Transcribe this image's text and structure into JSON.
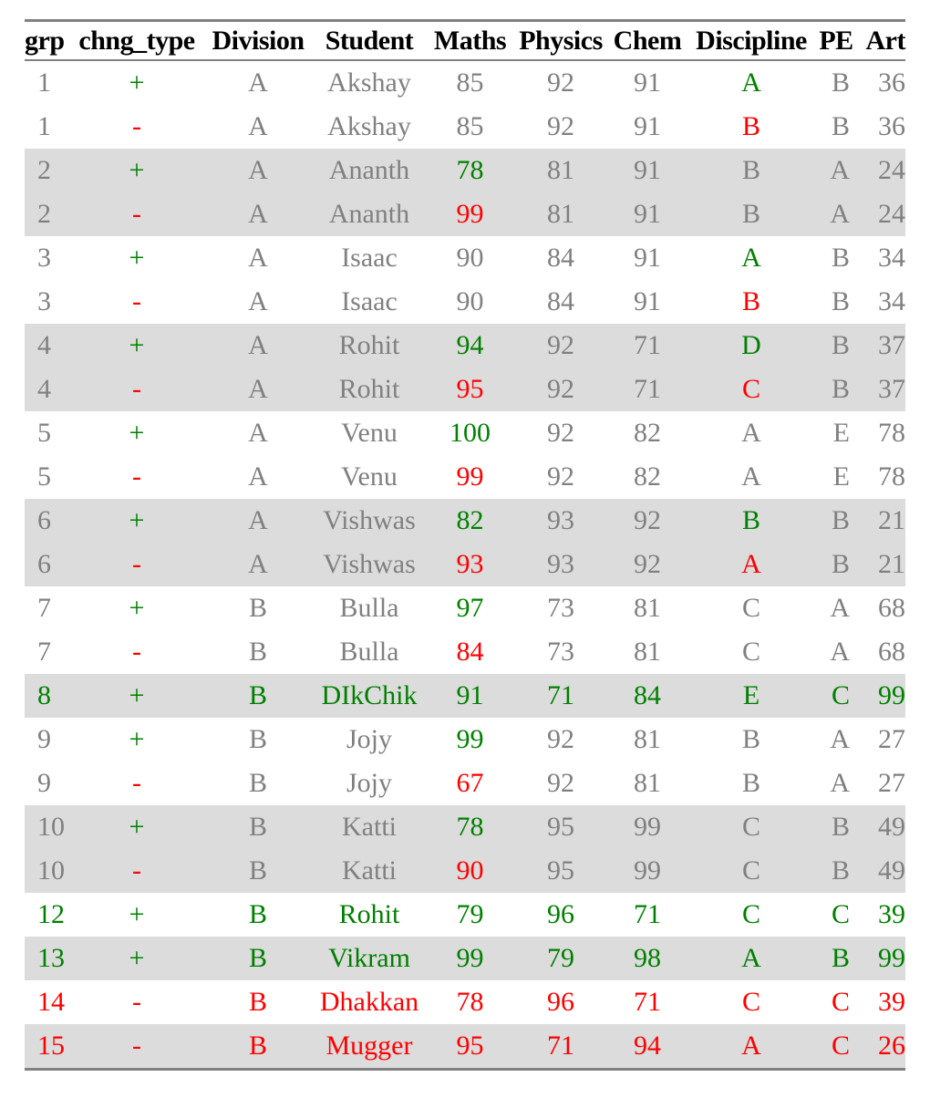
{
  "columns": [
    "grp",
    "chng_type",
    "Division",
    "Student",
    "Maths",
    "Physics",
    "Chem",
    "Discipline",
    "PE",
    "Art"
  ],
  "colors": {
    "added": "#008000",
    "removed": "#ff0000",
    "unchanged": "#808080",
    "band": "#dcdcdc"
  },
  "rows": [
    {
      "shaded": false,
      "whole": "",
      "cells": [
        "1",
        "+",
        "A",
        "Akshay",
        "85",
        "92",
        "91",
        "A",
        "B",
        "36"
      ],
      "hl": [
        0,
        0,
        0,
        0,
        0,
        0,
        0,
        1,
        0,
        0
      ]
    },
    {
      "shaded": false,
      "whole": "",
      "cells": [
        "1",
        "-",
        "A",
        "Akshay",
        "85",
        "92",
        "91",
        "B",
        "B",
        "36"
      ],
      "hl": [
        0,
        0,
        0,
        0,
        0,
        0,
        0,
        1,
        0,
        0
      ]
    },
    {
      "shaded": true,
      "whole": "",
      "cells": [
        "2",
        "+",
        "A",
        "Ananth",
        "78",
        "81",
        "91",
        "B",
        "A",
        "24"
      ],
      "hl": [
        0,
        0,
        0,
        0,
        1,
        0,
        0,
        0,
        0,
        0
      ]
    },
    {
      "shaded": true,
      "whole": "",
      "cells": [
        "2",
        "-",
        "A",
        "Ananth",
        "99",
        "81",
        "91",
        "B",
        "A",
        "24"
      ],
      "hl": [
        0,
        0,
        0,
        0,
        1,
        0,
        0,
        0,
        0,
        0
      ]
    },
    {
      "shaded": false,
      "whole": "",
      "cells": [
        "3",
        "+",
        "A",
        "Isaac",
        "90",
        "84",
        "91",
        "A",
        "B",
        "34"
      ],
      "hl": [
        0,
        0,
        0,
        0,
        0,
        0,
        0,
        1,
        0,
        0
      ]
    },
    {
      "shaded": false,
      "whole": "",
      "cells": [
        "3",
        "-",
        "A",
        "Isaac",
        "90",
        "84",
        "91",
        "B",
        "B",
        "34"
      ],
      "hl": [
        0,
        0,
        0,
        0,
        0,
        0,
        0,
        1,
        0,
        0
      ]
    },
    {
      "shaded": true,
      "whole": "",
      "cells": [
        "4",
        "+",
        "A",
        "Rohit",
        "94",
        "92",
        "71",
        "D",
        "B",
        "37"
      ],
      "hl": [
        0,
        0,
        0,
        0,
        1,
        0,
        0,
        1,
        0,
        0
      ]
    },
    {
      "shaded": true,
      "whole": "",
      "cells": [
        "4",
        "-",
        "A",
        "Rohit",
        "95",
        "92",
        "71",
        "C",
        "B",
        "37"
      ],
      "hl": [
        0,
        0,
        0,
        0,
        1,
        0,
        0,
        1,
        0,
        0
      ]
    },
    {
      "shaded": false,
      "whole": "",
      "cells": [
        "5",
        "+",
        "A",
        "Venu",
        "100",
        "92",
        "82",
        "A",
        "E",
        "78"
      ],
      "hl": [
        0,
        0,
        0,
        0,
        1,
        0,
        0,
        0,
        0,
        0
      ]
    },
    {
      "shaded": false,
      "whole": "",
      "cells": [
        "5",
        "-",
        "A",
        "Venu",
        "99",
        "92",
        "82",
        "A",
        "E",
        "78"
      ],
      "hl": [
        0,
        0,
        0,
        0,
        1,
        0,
        0,
        0,
        0,
        0
      ]
    },
    {
      "shaded": true,
      "whole": "",
      "cells": [
        "6",
        "+",
        "A",
        "Vishwas",
        "82",
        "93",
        "92",
        "B",
        "B",
        "21"
      ],
      "hl": [
        0,
        0,
        0,
        0,
        1,
        0,
        0,
        1,
        0,
        0
      ]
    },
    {
      "shaded": true,
      "whole": "",
      "cells": [
        "6",
        "-",
        "A",
        "Vishwas",
        "93",
        "93",
        "92",
        "A",
        "B",
        "21"
      ],
      "hl": [
        0,
        0,
        0,
        0,
        1,
        0,
        0,
        1,
        0,
        0
      ]
    },
    {
      "shaded": false,
      "whole": "",
      "cells": [
        "7",
        "+",
        "B",
        "Bulla",
        "97",
        "73",
        "81",
        "C",
        "A",
        "68"
      ],
      "hl": [
        0,
        0,
        0,
        0,
        1,
        0,
        0,
        0,
        0,
        0
      ]
    },
    {
      "shaded": false,
      "whole": "",
      "cells": [
        "7",
        "-",
        "B",
        "Bulla",
        "84",
        "73",
        "81",
        "C",
        "A",
        "68"
      ],
      "hl": [
        0,
        0,
        0,
        0,
        1,
        0,
        0,
        0,
        0,
        0
      ]
    },
    {
      "shaded": true,
      "whole": "g",
      "cells": [
        "8",
        "+",
        "B",
        "DIkChik",
        "91",
        "71",
        "84",
        "E",
        "C",
        "99"
      ],
      "hl": [
        0,
        0,
        0,
        0,
        0,
        0,
        0,
        0,
        0,
        0
      ]
    },
    {
      "shaded": false,
      "whole": "",
      "cells": [
        "9",
        "+",
        "B",
        "Jojy",
        "99",
        "92",
        "81",
        "B",
        "A",
        "27"
      ],
      "hl": [
        0,
        0,
        0,
        0,
        1,
        0,
        0,
        0,
        0,
        0
      ]
    },
    {
      "shaded": false,
      "whole": "",
      "cells": [
        "9",
        "-",
        "B",
        "Jojy",
        "67",
        "92",
        "81",
        "B",
        "A",
        "27"
      ],
      "hl": [
        0,
        0,
        0,
        0,
        1,
        0,
        0,
        0,
        0,
        0
      ]
    },
    {
      "shaded": true,
      "whole": "",
      "cells": [
        "10",
        "+",
        "B",
        "Katti",
        "78",
        "95",
        "99",
        "C",
        "B",
        "49"
      ],
      "hl": [
        0,
        0,
        0,
        0,
        1,
        0,
        0,
        0,
        0,
        0
      ]
    },
    {
      "shaded": true,
      "whole": "",
      "cells": [
        "10",
        "-",
        "B",
        "Katti",
        "90",
        "95",
        "99",
        "C",
        "B",
        "49"
      ],
      "hl": [
        0,
        0,
        0,
        0,
        1,
        0,
        0,
        0,
        0,
        0
      ]
    },
    {
      "shaded": false,
      "whole": "g",
      "cells": [
        "12",
        "+",
        "B",
        "Rohit",
        "79",
        "96",
        "71",
        "C",
        "C",
        "39"
      ],
      "hl": [
        0,
        0,
        0,
        0,
        0,
        0,
        0,
        0,
        0,
        0
      ]
    },
    {
      "shaded": true,
      "whole": "g",
      "cells": [
        "13",
        "+",
        "B",
        "Vikram",
        "99",
        "79",
        "98",
        "A",
        "B",
        "99"
      ],
      "hl": [
        0,
        0,
        0,
        0,
        0,
        0,
        0,
        0,
        0,
        0
      ]
    },
    {
      "shaded": false,
      "whole": "r",
      "cells": [
        "14",
        "-",
        "B",
        "Dhakkan",
        "78",
        "96",
        "71",
        "C",
        "C",
        "39"
      ],
      "hl": [
        0,
        0,
        0,
        0,
        0,
        0,
        0,
        0,
        0,
        0
      ]
    },
    {
      "shaded": true,
      "whole": "r",
      "cells": [
        "15",
        "-",
        "B",
        "Mugger",
        "95",
        "71",
        "94",
        "A",
        "C",
        "26"
      ],
      "hl": [
        0,
        0,
        0,
        0,
        0,
        0,
        0,
        0,
        0,
        0
      ]
    }
  ]
}
